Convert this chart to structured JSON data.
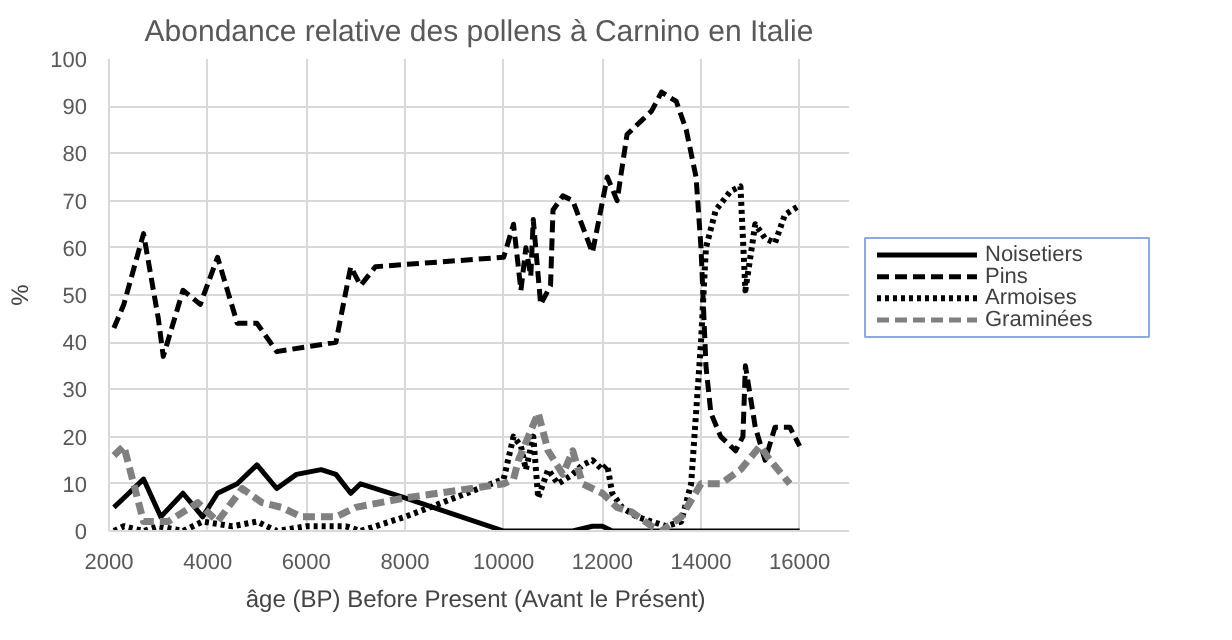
{
  "chart_data": {
    "type": "line",
    "title": "Abondance relative des pollens à Carnino en Italie",
    "xlabel": "âge (BP)  Before Present (Avant le Présent)",
    "ylabel": "%",
    "xlim": [
      2000,
      17000
    ],
    "ylim": [
      0,
      100
    ],
    "xticks": [
      2000,
      4000,
      6000,
      8000,
      10000,
      12000,
      14000,
      16000
    ],
    "yticks": [
      0,
      10,
      20,
      30,
      40,
      50,
      60,
      70,
      80,
      90,
      100
    ],
    "grid": true,
    "legend": "right",
    "marker": "none",
    "series": [
      {
        "name": "Noisetiers",
        "color": "#000000",
        "line_style": "solid",
        "x": [
          2100,
          2300,
          2700,
          3050,
          3500,
          3900,
          4200,
          4600,
          5000,
          5400,
          5800,
          6300,
          6600,
          6900,
          7100,
          8000,
          10000,
          10500,
          11000,
          11400,
          11800,
          12000,
          12200,
          13000,
          14000,
          15000,
          16000
        ],
        "values": [
          5,
          7,
          11,
          3,
          8,
          3,
          8,
          10,
          14,
          9,
          12,
          13,
          12,
          8,
          10,
          7,
          0,
          0,
          0,
          0,
          1,
          1,
          0,
          0,
          0,
          0,
          0
        ]
      },
      {
        "name": "Pins",
        "color": "#000000",
        "line_style": "dashed",
        "x": [
          2100,
          2300,
          2700,
          3000,
          3100,
          3500,
          3850,
          4200,
          4600,
          5000,
          5400,
          6600,
          6900,
          7100,
          7400,
          10000,
          10200,
          10350,
          10450,
          10550,
          10600,
          10750,
          10950,
          11000,
          11200,
          11400,
          11800,
          12100,
          12300,
          12500,
          12800,
          13000,
          13200,
          13500,
          13700,
          13900,
          14000,
          14100,
          14200,
          14400,
          14700,
          14850,
          14900,
          15100,
          15300,
          15500,
          15800,
          16000
        ],
        "values": [
          43,
          48,
          63,
          45,
          37,
          51,
          48,
          58,
          44,
          44,
          38,
          40,
          56,
          52,
          56,
          58,
          65,
          51,
          60,
          54,
          66,
          48,
          52,
          68,
          71,
          70,
          59,
          75,
          70,
          84,
          87,
          89,
          93,
          91,
          85,
          75,
          60,
          35,
          25,
          20,
          17,
          20,
          35,
          22,
          15,
          22,
          22,
          18
        ]
      },
      {
        "name": "Armoises",
        "color": "#000000",
        "line_style": "dotted",
        "x": [
          2100,
          2300,
          2700,
          3000,
          3500,
          3900,
          4500,
          5000,
          5400,
          6000,
          6800,
          7100,
          8000,
          10000,
          10200,
          10350,
          10450,
          10600,
          10700,
          10900,
          11100,
          11400,
          11600,
          11800,
          12000,
          12100,
          12200,
          12400,
          12700,
          13000,
          13300,
          13600,
          13800,
          14000,
          14100,
          14300,
          14600,
          14800,
          14900,
          15100,
          15300,
          15500,
          15700,
          16000
        ],
        "values": [
          0,
          1,
          0,
          1,
          0,
          2,
          1,
          2,
          0,
          1,
          1,
          0,
          3,
          11,
          20,
          18,
          13,
          20,
          7,
          13,
          10,
          12,
          14,
          15,
          13,
          14,
          8,
          5,
          3,
          2,
          1,
          2,
          10,
          40,
          60,
          68,
          72,
          73,
          51,
          65,
          62,
          61,
          67,
          69
        ]
      },
      {
        "name": "Graminées",
        "color": "#808080",
        "line_style": "dashed",
        "x": [
          2100,
          2300,
          2700,
          3200,
          3500,
          3800,
          4200,
          4700,
          5100,
          5500,
          5900,
          6600,
          7000,
          7500,
          8000,
          10000,
          10200,
          10300,
          10500,
          10700,
          10900,
          11200,
          11400,
          11600,
          12000,
          12300,
          12600,
          13000,
          13200,
          13600,
          14000,
          14400,
          14800,
          15200,
          15400,
          15800
        ],
        "values": [
          16,
          18,
          2,
          2,
          4,
          6,
          2,
          9,
          6,
          5,
          3,
          3,
          5,
          6,
          7,
          10,
          11,
          15,
          20,
          25,
          17,
          12,
          17,
          10,
          8,
          5,
          4,
          1,
          0,
          3,
          10,
          10,
          13,
          18,
          15,
          10
        ]
      }
    ]
  }
}
